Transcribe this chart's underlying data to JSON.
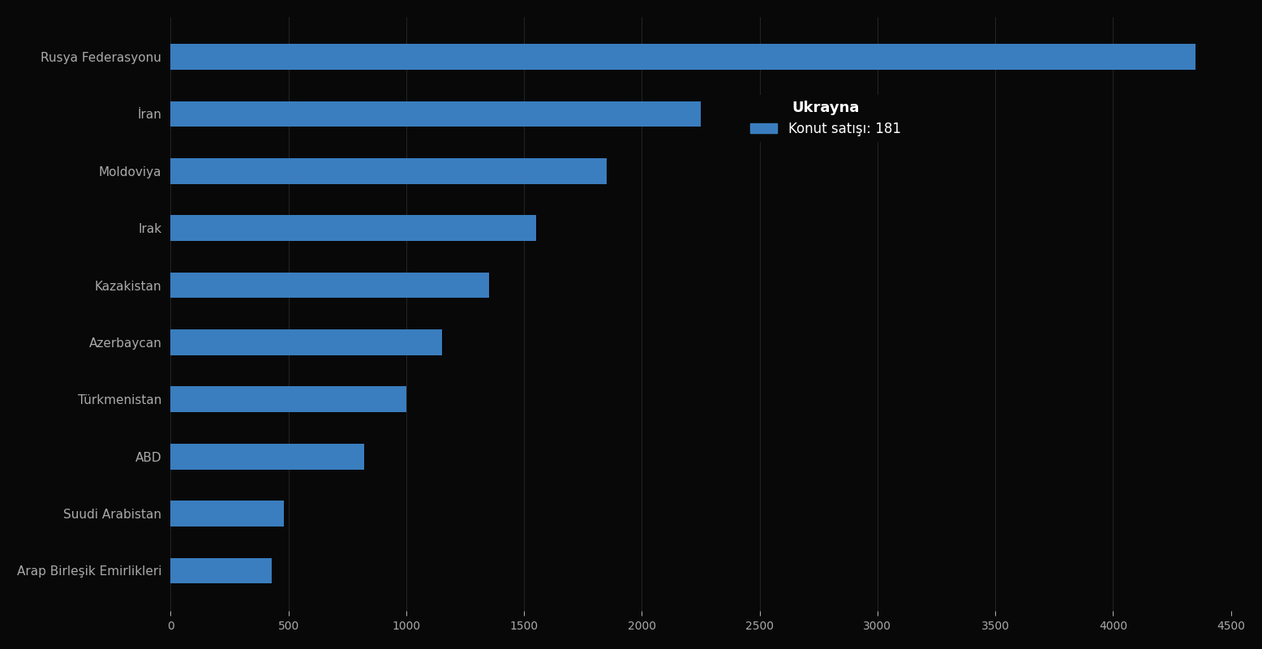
{
  "categories": [
    "Rusya Federasyonu",
    "İran",
    "Moldoviya",
    "Irak",
    "Kazakistan",
    "Azerbaycan",
    "Türkmenistan",
    "ABD",
    "Suudi Arabistan",
    "Arap Birleşik Emirlikleri"
  ],
  "values": [
    4350,
    2250,
    1850,
    1550,
    1350,
    1150,
    1000,
    820,
    480,
    430
  ],
  "bar_color": "#3a7ebf",
  "background_color": "#080808",
  "text_color": "#aaaaaa",
  "legend_title": "Ukrayna",
  "legend_label": "Konut satışı: 181",
  "legend_color": "#3a7ebf",
  "xlim": [
    0,
    4500
  ],
  "xticks": [
    0,
    500,
    1000,
    1500,
    2000,
    2500,
    3000,
    3500,
    4000,
    4500
  ],
  "bar_height": 0.45,
  "figsize": [
    15.56,
    8.0
  ],
  "dpi": 100
}
